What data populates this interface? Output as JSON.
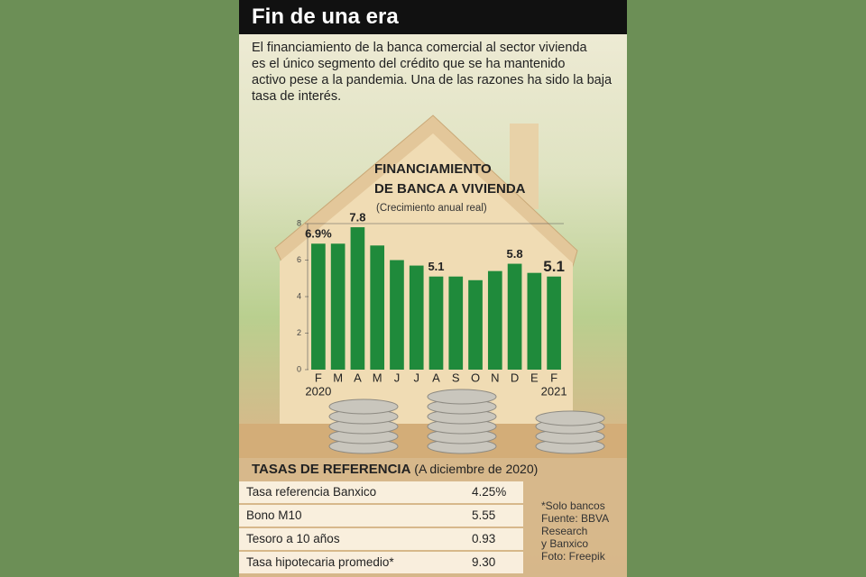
{
  "header": {
    "title": "Fin de una era"
  },
  "intro": [
    "El financiamiento de la banca comercial al sector vivienda",
    "es el único segmento del crédito que se ha mantenido",
    "activo pese a la pandemia. Una de las razones ha sido la baja",
    "tasa de interés."
  ],
  "chart_data": {
    "type": "bar",
    "title": [
      "FINANCIAMIENTO",
      "DE BANCA A VIVIENDA"
    ],
    "subtitle": "(Crecimiento anual real)",
    "categories": [
      "F",
      "M",
      "A",
      "M",
      "J",
      "J",
      "A",
      "S",
      "O",
      "N",
      "D",
      "E",
      "F"
    ],
    "years": [
      "2020",
      "2021"
    ],
    "values": [
      6.9,
      6.9,
      7.8,
      6.8,
      6.0,
      5.7,
      5.1,
      5.1,
      4.9,
      5.4,
      5.8,
      5.3,
      5.1
    ],
    "value_labels": [
      "6.9%",
      null,
      "7.8",
      null,
      null,
      null,
      "5.1",
      null,
      null,
      null,
      "5.8",
      null,
      "5.1"
    ],
    "color": "#1f8a3b",
    "ylim": [
      0,
      8
    ],
    "yticks": [
      0,
      2,
      4,
      6,
      8
    ]
  },
  "rates": {
    "title": "TASAS DE REFERENCIA",
    "subtitle": "(A diciembre de 2020)",
    "rows": [
      [
        "Tasa referencia Banxico",
        "4.25%"
      ],
      [
        "Bono M10",
        "5.55"
      ],
      [
        "Tesoro a 10 años",
        "0.93"
      ],
      [
        "Tasa hipotecaria promedio*",
        "9.30"
      ]
    ]
  },
  "notes": [
    "*Solo bancos",
    "Fuente: BBVA",
    "Research",
    "y Banxico",
    "Foto: Freepik"
  ]
}
